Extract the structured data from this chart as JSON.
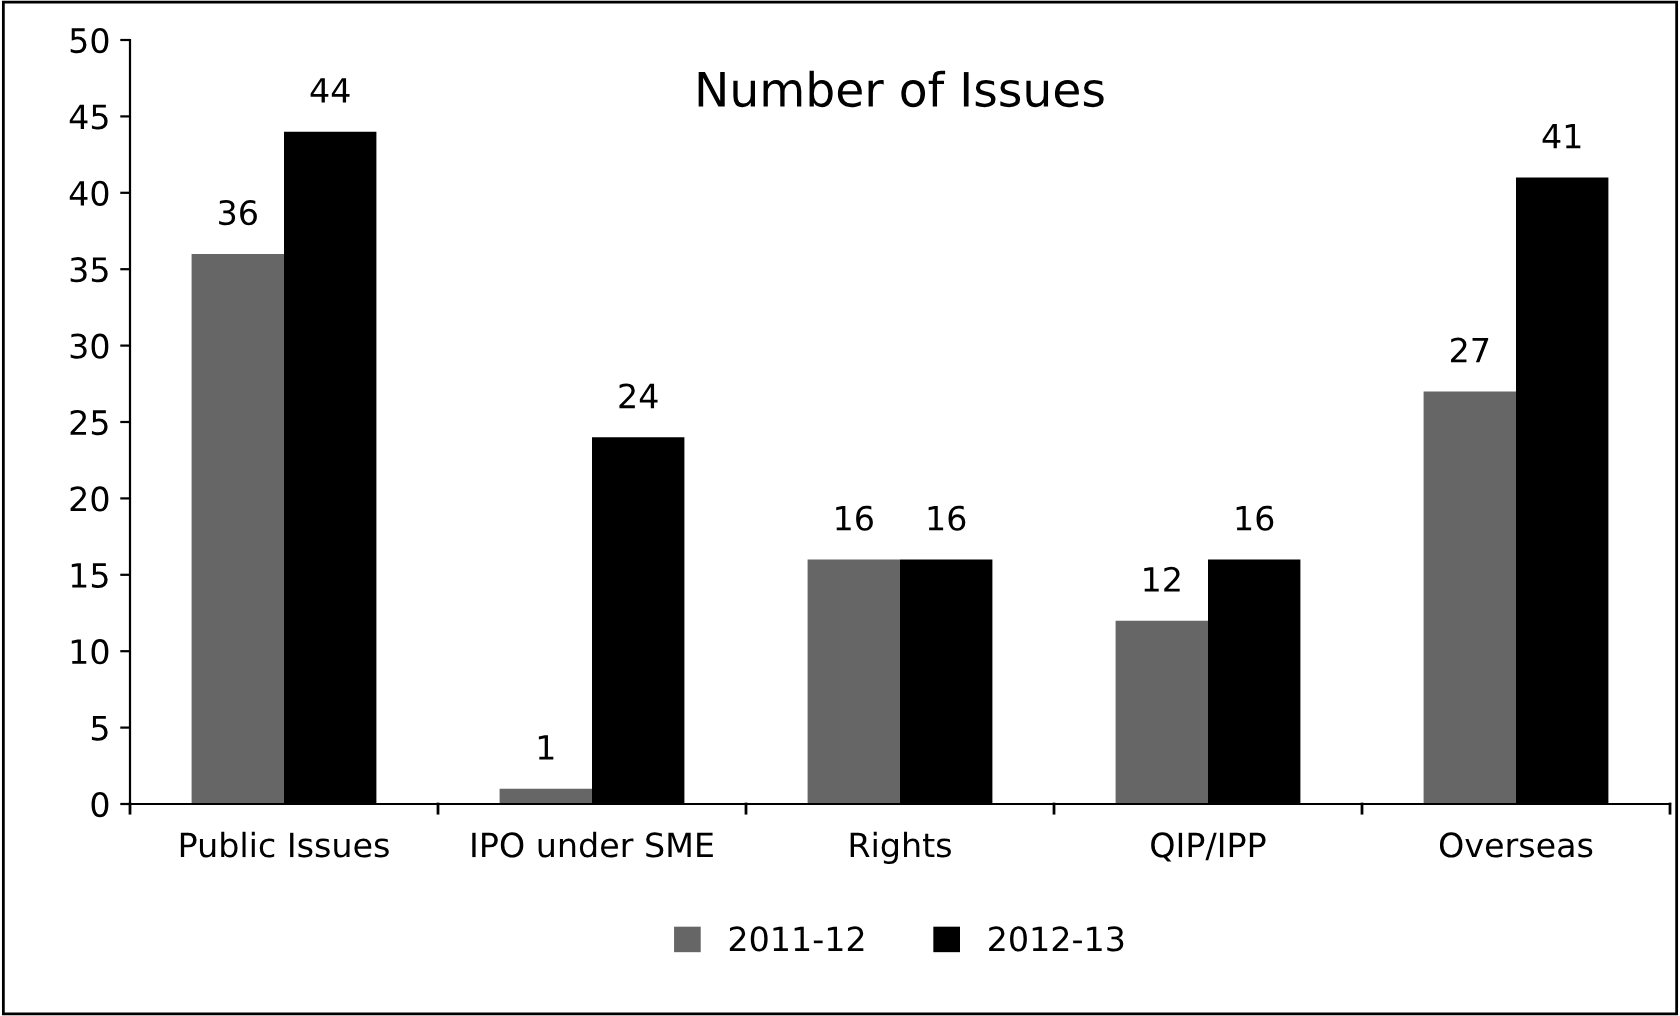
{
  "chart_data": {
    "type": "bar",
    "title": "Number of Issues",
    "categories": [
      "Public Issues",
      "IPO under SME",
      "Rights",
      "QIP/IPP",
      "Overseas"
    ],
    "series": [
      {
        "name": "2011-12",
        "color": "#666666",
        "values": [
          36,
          1,
          16,
          12,
          27
        ]
      },
      {
        "name": "2012-13",
        "color": "#000000",
        "values": [
          44,
          24,
          16,
          16,
          41
        ]
      }
    ],
    "ylim": [
      0,
      50
    ],
    "yticks": [
      0,
      5,
      10,
      15,
      20,
      25,
      30,
      35,
      40,
      45,
      50
    ],
    "data_labels": true,
    "legend": "bottom",
    "grid": false
  }
}
